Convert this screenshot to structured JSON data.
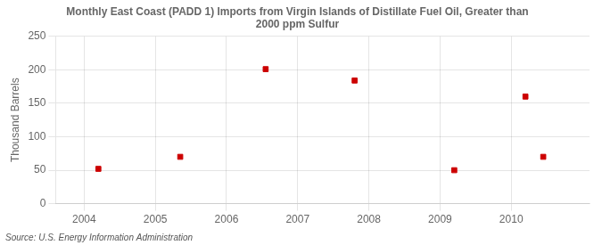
{
  "chart_data": {
    "type": "scatter",
    "title": "Monthly East Coast (PADD 1) Imports from Virgin Islands of Distillate Fuel Oil, Greater than\n2000 ppm Sulfur",
    "ylabel": "Thousand Barrels",
    "annotations": [
      "Source: U.S. Energy Information Administration"
    ],
    "x": [
      2004.2,
      2005.35,
      2006.55,
      2007.8,
      2009.2,
      2010.2,
      2010.45
    ],
    "values": [
      52,
      70,
      201,
      184,
      50,
      160,
      70
    ],
    "color": "#cc0000",
    "marker": "square",
    "xlim": [
      2003.6,
      2011.1
    ],
    "ylim": [
      0,
      250
    ],
    "xticks": [
      2004,
      2005,
      2006,
      2007,
      2008,
      2009,
      2010
    ],
    "yticks": [
      0,
      50,
      100,
      150,
      200,
      250
    ],
    "grid": true
  }
}
